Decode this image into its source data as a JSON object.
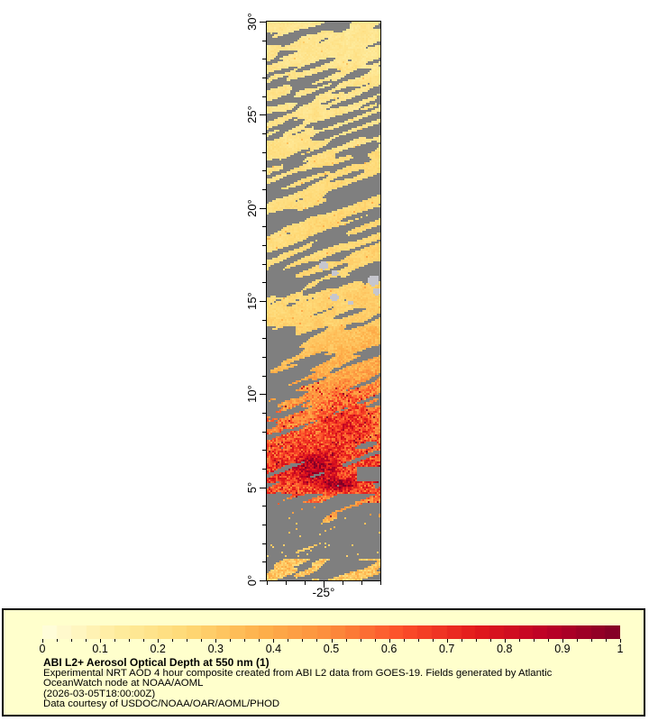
{
  "figure": {
    "background": "#FFFFFF",
    "plot_border_color": "#000000",
    "map": {
      "nodata_color": "#7F7F7F",
      "glint_color": "#C6C6CE",
      "axis": {
        "lat_range": [
          0,
          30
        ],
        "lon_range": [
          -28,
          -22
        ],
        "lat_major_ticks": [
          {
            "value": 30,
            "label": "30°"
          },
          {
            "value": 25,
            "label": "25°"
          },
          {
            "value": 20,
            "label": "20°"
          },
          {
            "value": 15,
            "label": "15°"
          },
          {
            "value": 10,
            "label": "10°"
          },
          {
            "value": 5,
            "label": "5°"
          },
          {
            "value": 0,
            "label": "0°"
          }
        ],
        "lat_minor_step": 1,
        "lon_minor_step": 1,
        "lon_major_tick": {
          "value": -25,
          "label": "-25°"
        }
      }
    },
    "legend": {
      "background": "#FFFFCC",
      "border_color": "#000000",
      "colorbar": {
        "min": 0,
        "max": 1,
        "colormap": "YlOrRd",
        "stops": [
          "#FFFFE0",
          "#FFEDA0",
          "#FED976",
          "#FEB24C",
          "#FD8D3C",
          "#FC4E2A",
          "#E31A1C",
          "#BD0026",
          "#800026"
        ],
        "major_ticks": [
          {
            "value": 0,
            "label": "0"
          },
          {
            "value": 0.1,
            "label": "0.1"
          },
          {
            "value": 0.2,
            "label": "0.2"
          },
          {
            "value": 0.3,
            "label": "0.3"
          },
          {
            "value": 0.4,
            "label": "0.4"
          },
          {
            "value": 0.5,
            "label": "0.5"
          },
          {
            "value": 0.6,
            "label": "0.6"
          },
          {
            "value": 0.7,
            "label": "0.7"
          },
          {
            "value": 0.8,
            "label": "0.8"
          },
          {
            "value": 0.9,
            "label": "0.9"
          },
          {
            "value": 1,
            "label": "1"
          }
        ],
        "minor_step": 0.025
      },
      "title": "ABI L2+ Aerosol Optical Depth at 550 nm (1)",
      "lines": [
        "Experimental NRT AOD 4 hour composite created from ABI L2 data from GOES-19. Fields generated by Atlantic",
        "OceanWatch node at NOAA/AOML",
        "(2026-03-05T18:00:00Z)",
        "Data courtesy of USDOC/NOAA/OAR/AOML/PHOD"
      ]
    }
  },
  "chart_data": {
    "type": "heatmap",
    "title": "ABI L2+ Aerosol Optical Depth at 550 nm (1)",
    "value_label": "Aerosol Optical Depth at 550 nm",
    "value_range": [
      0,
      1
    ],
    "x_axis": {
      "name": "longitude",
      "range_deg": [
        -28,
        -22
      ],
      "tick_step_deg": 1,
      "labeled_tick": "-25°"
    },
    "y_axis": {
      "name": "latitude",
      "range_deg": [
        0,
        30
      ],
      "tick_step_deg": 1,
      "labeled_ticks": [
        "0°",
        "5°",
        "10°",
        "15°",
        "20°",
        "25°",
        "30°"
      ]
    },
    "legend_position": "bottom",
    "nodata_meaning": "gray pixels = no retrieval (cloud / glint)",
    "regions": [
      {
        "lat_band": "13-30",
        "aod_approx": 0.2,
        "note": "pale yellow field broken by diagonal NE-SW gray cloud streaks"
      },
      {
        "lat_band": "15-17",
        "aod_approx": 0.25,
        "note": "larger gray cloud masses; few light-gray glint patches"
      },
      {
        "lat_band": "10-13",
        "aod_approx": 0.35,
        "note": "large gray cloud mass on west half, yellow-orange on east"
      },
      {
        "lat_band": "6.5-10",
        "aod_approx": 0.55,
        "note": "orange plume, red maximum right of center near 9N"
      },
      {
        "lat_band": "4.5-6.5",
        "aod_approx": 0.7,
        "note": "red speckled core with dark-red clusters up to ~0.9-1.0 near 5-6N"
      },
      {
        "lat_band": "1-4.5",
        "aod_approx": null,
        "note": "almost entirely no-data gray with sparse yellow specks"
      },
      {
        "lat_band": "0-1",
        "aod_approx": 0.3,
        "note": "scattered pale orange patches along bottom edge"
      }
    ]
  }
}
